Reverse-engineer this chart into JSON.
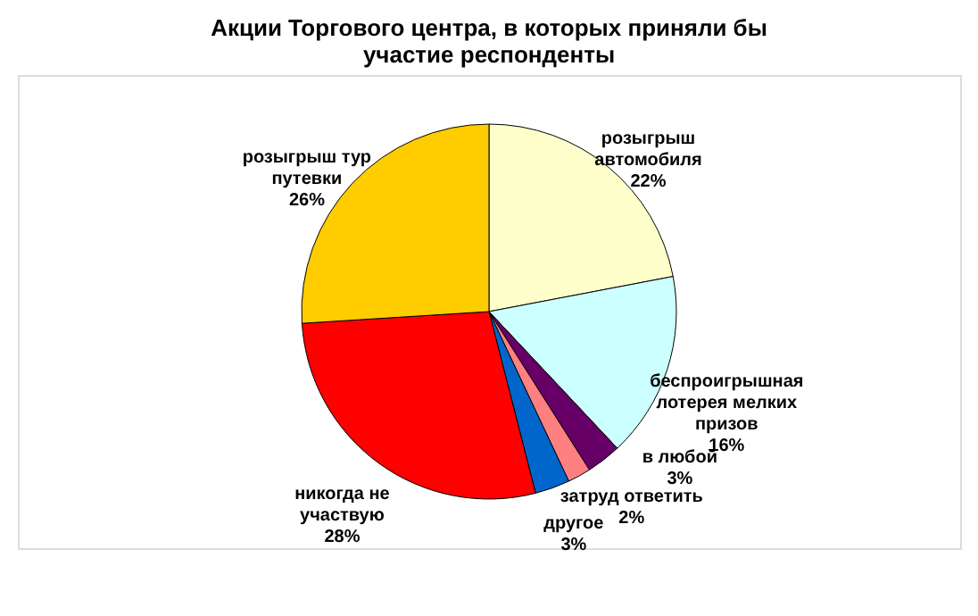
{
  "chart_data": {
    "type": "pie",
    "title": "Акции Торгового центра, в которых приняли бы участие респонденты",
    "categories": [
      "розыгрыш автомобиля",
      "беспроигрышная лотерея мелких призов",
      "в любой",
      "затруд ответить",
      "другое",
      "никогда не участвую",
      "розыгрыш тур путевки"
    ],
    "values": [
      22,
      16,
      3,
      2,
      3,
      28,
      26
    ],
    "colors": [
      "#ffffcc",
      "#ccffff",
      "#660066",
      "#ff8080",
      "#0066cc",
      "#ff0000",
      "#ffcc00"
    ],
    "value_labels": [
      "22%",
      "16%",
      "3%",
      "2%",
      "3%",
      "28%",
      "26%"
    ],
    "legend": false
  }
}
